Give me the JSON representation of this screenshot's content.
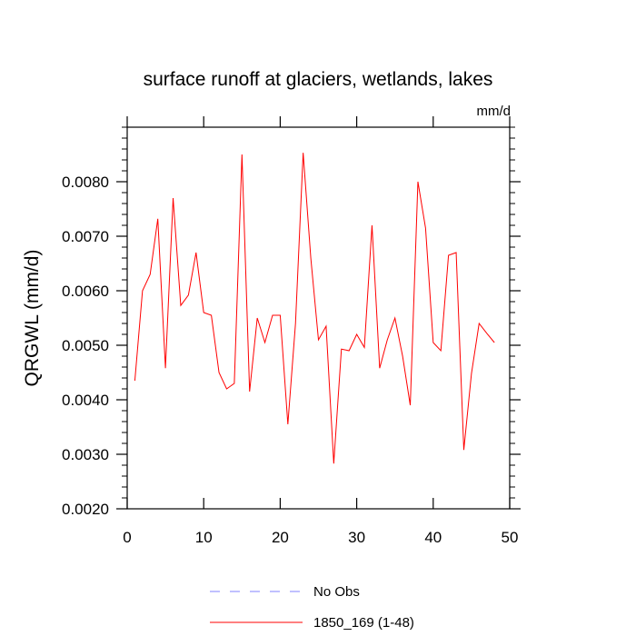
{
  "chart_data": {
    "type": "line",
    "title": "surface runoff at glaciers, wetlands, lakes",
    "units_label": "mm/d",
    "ylabel": "QRGWL  (mm/d)",
    "xlabel": "",
    "xlim": [
      0,
      50
    ],
    "ylim": [
      0.002,
      0.009
    ],
    "x_ticks": [
      0,
      10,
      20,
      30,
      40,
      50
    ],
    "x_tick_labels": [
      "0",
      "10",
      "20",
      "30",
      "40",
      "50"
    ],
    "y_ticks": [
      0.002,
      0.003,
      0.004,
      0.005,
      0.006,
      0.007,
      0.008
    ],
    "y_tick_labels": [
      "0.0020",
      "0.0030",
      "0.0040",
      "0.0050",
      "0.0060",
      "0.0070",
      "0.0080"
    ],
    "grid": false,
    "legend_position": "bottom",
    "series": [
      {
        "name": "No Obs",
        "color": "#8080ff",
        "dashed": true,
        "x": [],
        "values": []
      },
      {
        "name": "1850_169 (1-48)",
        "color": "#ff0000",
        "dashed": false,
        "x": [
          1,
          2,
          3,
          4,
          5,
          6,
          7,
          8,
          9,
          10,
          11,
          12,
          13,
          14,
          15,
          16,
          17,
          18,
          19,
          20,
          21,
          22,
          23,
          24,
          25,
          26,
          27,
          28,
          29,
          30,
          31,
          32,
          33,
          34,
          35,
          36,
          37,
          38,
          39,
          40,
          41,
          42,
          43,
          44,
          45,
          46,
          47,
          48
        ],
        "values": [
          0.00435,
          0.006,
          0.0063,
          0.00732,
          0.00458,
          0.0077,
          0.00573,
          0.00592,
          0.0067,
          0.0056,
          0.00555,
          0.0045,
          0.0042,
          0.0043,
          0.0085,
          0.00415,
          0.0055,
          0.00505,
          0.00555,
          0.00555,
          0.00355,
          0.0054,
          0.00853,
          0.0066,
          0.0051,
          0.00535,
          0.00283,
          0.00493,
          0.0049,
          0.0052,
          0.00496,
          0.0072,
          0.00458,
          0.0051,
          0.0055,
          0.0048,
          0.0039,
          0.008,
          0.00715,
          0.00505,
          0.0049,
          0.00665,
          0.0067,
          0.00308,
          0.00448,
          0.0054,
          0.00522,
          0.00505
        ]
      }
    ]
  }
}
